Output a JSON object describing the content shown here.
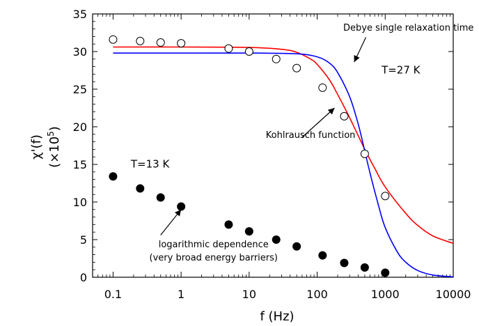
{
  "chart_data": {
    "type": "scatter",
    "title": "",
    "xlabel": "f (Hz)",
    "ylabel_line1": "χ'(f)",
    "ylabel_line2_prefix": "(×10",
    "ylabel_line2_exp": "5",
    "ylabel_line2_suffix": ")",
    "xscale": "log",
    "xlim": [
      0.05,
      10000
    ],
    "ylim": [
      0,
      35
    ],
    "xticks": [
      0.1,
      1,
      10,
      100,
      1000,
      10000
    ],
    "xtick_labels": [
      "0.1",
      "1",
      "10",
      "100",
      "1000",
      "10000"
    ],
    "yticks": [
      0,
      5,
      10,
      15,
      20,
      25,
      30,
      35
    ],
    "ytick_labels": [
      "0",
      "5",
      "10",
      "15",
      "20",
      "25",
      "30",
      "35"
    ],
    "grid": false,
    "series": [
      {
        "name": "T=27 K",
        "marker": "open-circle",
        "x": [
          0.1,
          0.25,
          0.5,
          1,
          5,
          10,
          25,
          50,
          120,
          250,
          500,
          1000
        ],
        "y": [
          31.6,
          31.4,
          31.2,
          31.1,
          30.4,
          30.0,
          29.0,
          27.8,
          25.2,
          21.4,
          16.4,
          10.8
        ]
      },
      {
        "name": "T=13 K",
        "marker": "filled-circle",
        "x": [
          0.1,
          0.25,
          0.5,
          1,
          5,
          10,
          25,
          50,
          120,
          250,
          500,
          1000
        ],
        "y": [
          13.4,
          11.8,
          10.6,
          9.4,
          7.0,
          6.1,
          5.0,
          4.1,
          2.9,
          1.9,
          1.3,
          0.6
        ]
      },
      {
        "name": "Kohlrausch function",
        "kind": "curve",
        "color": "#ff0000",
        "x": [
          0.1,
          1,
          10,
          30,
          50,
          80,
          100,
          150,
          200,
          300,
          500,
          700,
          1000,
          2000,
          3000,
          5000,
          10000
        ],
        "y": [
          30.6,
          30.6,
          30.55,
          30.3,
          29.9,
          29.0,
          28.3,
          26.3,
          24.3,
          21.2,
          17.0,
          14.5,
          12.0,
          8.5,
          6.9,
          5.5,
          4.5
        ]
      },
      {
        "name": "Debye single relaxation time",
        "kind": "curve",
        "color": "#0000ff",
        "x": [
          0.1,
          1,
          10,
          50,
          100,
          150,
          200,
          300,
          400,
          500,
          600,
          800,
          1000,
          1500,
          2000,
          3000,
          5000,
          10000
        ],
        "y": [
          29.8,
          29.8,
          29.8,
          29.7,
          29.3,
          28.5,
          27.2,
          24.0,
          20.4,
          16.8,
          13.8,
          9.5,
          6.6,
          3.4,
          2.0,
          0.9,
          0.3,
          0.05
        ]
      }
    ],
    "annotations": [
      {
        "text": "Debye single relaxation time",
        "x": 2200,
        "y": 32.8
      },
      {
        "text": "T=27 K",
        "x": 1700,
        "y": 27.1
      },
      {
        "text": "Kohlrausch function",
        "x": 80,
        "y": 18.5
      },
      {
        "text": "T=13 K",
        "x": 0.35,
        "y": 14.6
      },
      {
        "text": "logarithmic dependence",
        "x": 3,
        "y": 4.0
      },
      {
        "text": "(very broad energy barriers)",
        "x": 3,
        "y": 2.2
      }
    ],
    "arrows": [
      {
        "from": [
          520,
          31.9
        ],
        "to": [
          350,
          28.6
        ]
      },
      {
        "from": [
          60,
          18.6
        ],
        "to": [
          180,
          22.5
        ]
      },
      {
        "from": [
          0.5,
          5.6
        ],
        "to": [
          1.0,
          9.0
        ]
      }
    ],
    "colors": {
      "kohlrausch": "#ff0000",
      "debye": "#0000ff",
      "markers": "#000000"
    }
  }
}
